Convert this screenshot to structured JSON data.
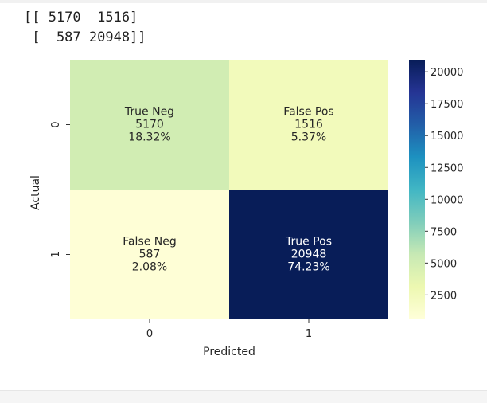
{
  "output": {
    "lines": [
      "[[ 5170  1516]",
      " [  587 20948]]"
    ]
  },
  "chart_data": {
    "type": "heatmap",
    "xlabel": "Predicted",
    "ylabel": "Actual",
    "x_categories": [
      "0",
      "1"
    ],
    "y_categories": [
      "0",
      "1"
    ],
    "cells": [
      {
        "row": 0,
        "col": 0,
        "name": "True Neg",
        "count": "5170",
        "percent": "18.32%",
        "value": 5170,
        "color": "#d1edb3",
        "text_color": "#262626"
      },
      {
        "row": 0,
        "col": 1,
        "name": "False Pos",
        "count": "1516",
        "percent": "5.37%",
        "value": 1516,
        "color": "#f2fabb",
        "text_color": "#262626"
      },
      {
        "row": 1,
        "col": 0,
        "name": "False Neg",
        "count": "587",
        "percent": "2.08%",
        "value": 587,
        "color": "#fefed6",
        "text_color": "#262626"
      },
      {
        "row": 1,
        "col": 1,
        "name": "True Pos",
        "count": "20948",
        "percent": "74.23%",
        "value": 20948,
        "color": "#081d58",
        "text_color": "#ffffff"
      }
    ],
    "colorbar": {
      "colormap": "YlGnBu",
      "vmin": 587,
      "vmax": 20948,
      "ticks": [
        2500,
        5000,
        7500,
        10000,
        12500,
        15000,
        17500,
        20000
      ],
      "tick_labels": [
        "2500",
        "5000",
        "7500",
        "10000",
        "12500",
        "15000",
        "17500",
        "20000"
      ],
      "stops": [
        "#ffffd9",
        "#edf8b1",
        "#c7e9b4",
        "#7fcdbb",
        "#41b6c4",
        "#1d91c0",
        "#225ea8",
        "#253494",
        "#081d58"
      ]
    }
  }
}
